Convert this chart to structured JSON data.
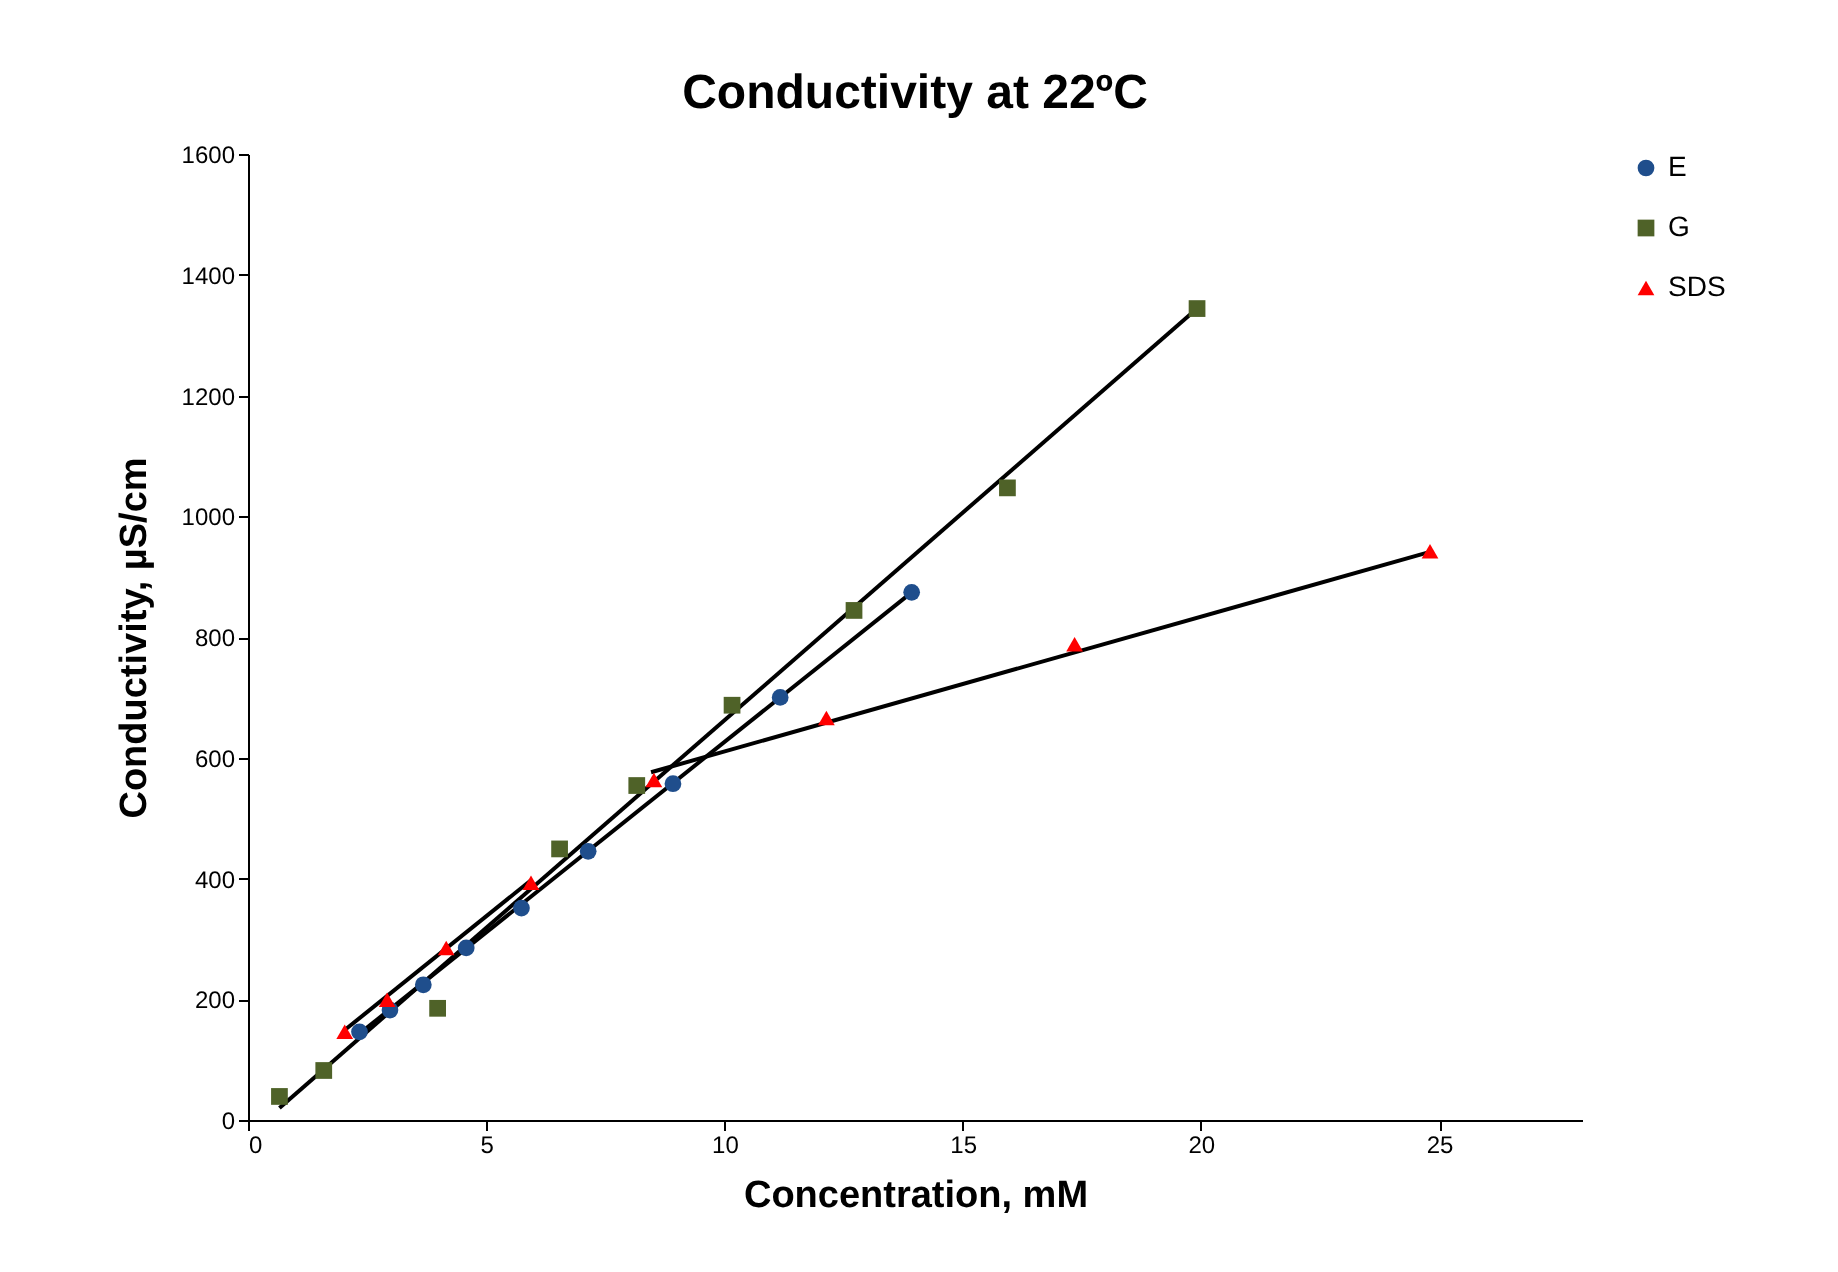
{
  "chart_data": {
    "type": "scatter",
    "title": "Conductivity at 22ºC",
    "xlabel": "Concentration, mM",
    "ylabel": "Conductivity, µS/cm",
    "xlim": [
      0,
      28
    ],
    "xticks": [
      0,
      5,
      10,
      15,
      20,
      25
    ],
    "ylim": [
      0,
      1600
    ],
    "yticks": [
      0,
      200,
      400,
      600,
      800,
      1000,
      1200,
      1400,
      1600
    ],
    "grid": false,
    "legend": "right",
    "series": [
      {
        "name": "E",
        "color": "#1f4e8c",
        "marker": "circle",
        "x": [
          2.34,
          2.98,
          3.68,
          4.58,
          5.74,
          7.14,
          8.92,
          11.17,
          13.93
        ],
        "values": [
          146,
          182,
          224,
          285,
          351,
          445,
          557,
          700,
          874
        ]
      },
      {
        "name": "G",
        "color": "#4f6228",
        "marker": "square",
        "x": [
          0.66,
          1.59,
          3.98,
          6.54,
          8.16,
          10.16,
          12.72,
          15.94,
          19.92
        ],
        "values": [
          39,
          82,
          185,
          449,
          554,
          687,
          844,
          1047,
          1344
        ]
      },
      {
        "name": "SDS",
        "color": "#ff0000",
        "marker": "triangle",
        "x": [
          2.03,
          2.92,
          4.16,
          5.94,
          8.52,
          12.14,
          17.35,
          24.81
        ],
        "values": [
          146,
          199,
          285,
          393,
          563,
          666,
          788,
          942
        ]
      },
      {
        "type": "line",
        "color": "#000000",
        "x": [
          0.66,
          19.92
        ],
        "values": [
          20,
          1344
        ]
      },
      {
        "type": "line",
        "color": "#000000",
        "x": [
          2.34,
          13.93
        ],
        "values": [
          143,
          874
        ]
      },
      {
        "type": "line",
        "color": "#000000",
        "x": [
          2.03,
          5.94
        ],
        "values": [
          149,
          397
        ]
      },
      {
        "type": "line",
        "color": "#000000",
        "x": [
          8.46,
          24.81
        ],
        "values": [
          576,
          941
        ]
      }
    ]
  }
}
